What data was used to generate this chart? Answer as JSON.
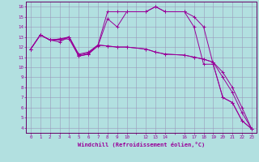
{
  "xlabel": "Windchill (Refroidissement éolien,°C)",
  "bg_color": "#b2e0e0",
  "grid_color": "#9999bb",
  "line_color": "#990099",
  "spine_color": "#660066",
  "xlim": [
    -0.5,
    23.5
  ],
  "ylim": [
    3.5,
    16.5
  ],
  "xticks": [
    0,
    1,
    2,
    3,
    4,
    5,
    6,
    7,
    8,
    9,
    10,
    12,
    13,
    14,
    16,
    17,
    18,
    19,
    20,
    21,
    22,
    23
  ],
  "yticks": [
    4,
    5,
    6,
    7,
    8,
    9,
    10,
    11,
    12,
    13,
    14,
    15,
    16
  ],
  "curves": [
    [
      [
        0,
        11.8
      ],
      [
        1,
        13.2
      ],
      [
        2,
        12.7
      ],
      [
        3,
        12.5
      ],
      [
        4,
        13.0
      ],
      [
        5,
        11.1
      ],
      [
        6,
        11.3
      ],
      [
        7,
        12.1
      ],
      [
        8,
        14.8
      ],
      [
        9,
        14.0
      ],
      [
        10,
        15.5
      ],
      [
        12,
        15.5
      ],
      [
        13,
        16.0
      ],
      [
        14,
        15.5
      ],
      [
        16,
        15.5
      ],
      [
        17,
        14.0
      ],
      [
        18,
        10.3
      ],
      [
        19,
        10.3
      ],
      [
        20,
        7.0
      ],
      [
        21,
        6.5
      ],
      [
        22,
        4.7
      ],
      [
        23,
        3.9
      ]
    ],
    [
      [
        0,
        11.8
      ],
      [
        1,
        13.2
      ],
      [
        2,
        12.7
      ],
      [
        3,
        12.8
      ],
      [
        4,
        13.0
      ],
      [
        5,
        11.3
      ],
      [
        6,
        11.5
      ],
      [
        7,
        12.2
      ],
      [
        8,
        12.1
      ],
      [
        9,
        12.0
      ],
      [
        10,
        12.0
      ],
      [
        12,
        11.8
      ],
      [
        13,
        11.5
      ],
      [
        14,
        11.3
      ],
      [
        16,
        11.2
      ],
      [
        17,
        11.0
      ],
      [
        18,
        10.8
      ],
      [
        19,
        10.5
      ],
      [
        20,
        9.5
      ],
      [
        21,
        8.0
      ],
      [
        22,
        6.0
      ],
      [
        23,
        3.9
      ]
    ],
    [
      [
        0,
        11.8
      ],
      [
        1,
        13.2
      ],
      [
        2,
        12.7
      ],
      [
        3,
        12.8
      ],
      [
        4,
        12.8
      ],
      [
        5,
        11.1
      ],
      [
        6,
        11.3
      ],
      [
        7,
        12.2
      ],
      [
        8,
        15.5
      ],
      [
        9,
        15.5
      ],
      [
        10,
        15.5
      ],
      [
        12,
        15.5
      ],
      [
        13,
        16.0
      ],
      [
        14,
        15.5
      ],
      [
        16,
        15.5
      ],
      [
        17,
        15.0
      ],
      [
        18,
        14.0
      ],
      [
        19,
        10.3
      ],
      [
        20,
        7.0
      ],
      [
        21,
        6.5
      ],
      [
        22,
        4.7
      ],
      [
        23,
        3.9
      ]
    ],
    [
      [
        0,
        11.8
      ],
      [
        1,
        13.2
      ],
      [
        2,
        12.7
      ],
      [
        3,
        12.7
      ],
      [
        4,
        13.0
      ],
      [
        5,
        11.2
      ],
      [
        6,
        11.4
      ],
      [
        7,
        12.2
      ],
      [
        8,
        12.1
      ],
      [
        9,
        12.0
      ],
      [
        10,
        12.0
      ],
      [
        12,
        11.8
      ],
      [
        13,
        11.5
      ],
      [
        14,
        11.3
      ],
      [
        16,
        11.2
      ],
      [
        17,
        11.0
      ],
      [
        18,
        10.8
      ],
      [
        19,
        10.5
      ],
      [
        20,
        9.0
      ],
      [
        21,
        7.5
      ],
      [
        22,
        5.5
      ],
      [
        23,
        3.9
      ]
    ]
  ]
}
